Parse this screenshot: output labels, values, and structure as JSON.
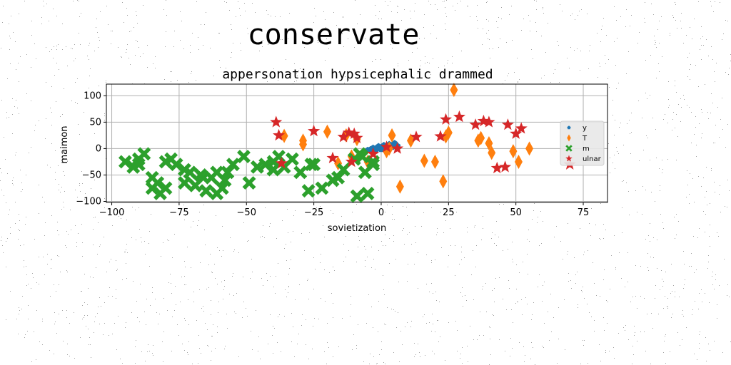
{
  "figure_title": "conservate",
  "chart_data": {
    "type": "scatter",
    "title": "appersonation hypsicephalic drammed",
    "xlabel": "sovietization",
    "ylabel": "maimon",
    "xlim": [
      -102,
      84
    ],
    "ylim": [
      -102,
      122
    ],
    "xticks": [
      -100,
      -75,
      -50,
      -25,
      0,
      25,
      50,
      75
    ],
    "yticks": [
      -100,
      -50,
      0,
      50,
      100
    ],
    "xtick_labels": [
      "−100",
      "−75",
      "−50",
      "−25",
      "0",
      "25",
      "50",
      "75"
    ],
    "ytick_labels": [
      "−100",
      "−50",
      "0",
      "50",
      "100"
    ],
    "grid": true,
    "legend_position": "right",
    "series": [
      {
        "name": "y",
        "marker": "pentagon",
        "color": "#1f77b4",
        "x": [
          -5,
          -4,
          -3,
          -2,
          -1,
          0,
          1,
          2,
          3,
          4,
          5,
          -3,
          -1,
          1,
          3,
          5,
          0,
          2,
          4,
          6,
          -2,
          1
        ],
        "y": [
          -3,
          -2,
          -1,
          0,
          1,
          2,
          3,
          4,
          5,
          6,
          7,
          1,
          4,
          6,
          8,
          10,
          -1,
          2,
          3,
          5,
          -4,
          0
        ]
      },
      {
        "name": "T",
        "marker": "diamond",
        "color": "#ff7f0e",
        "x": [
          -36,
          -29,
          -29,
          -20,
          -16,
          -13,
          -11,
          -9,
          -5,
          2,
          3,
          4,
          7,
          11,
          16,
          20,
          23,
          24,
          25,
          27,
          36,
          37,
          40,
          41,
          49,
          51,
          55
        ],
        "y": [
          24,
          8,
          15,
          32,
          -28,
          25,
          -15,
          18,
          -25,
          -5,
          0,
          25,
          -72,
          15,
          -23,
          -25,
          -62,
          23,
          30,
          111,
          15,
          20,
          10,
          -8,
          -5,
          -25,
          0
        ]
      },
      {
        "name": "m",
        "marker": "x",
        "color": "#2ca02c",
        "x": [
          -95,
          -92,
          -90,
          -88,
          -85,
          -83,
          -82,
          -80,
          -78,
          -76,
          -73,
          -71,
          -69,
          -67,
          -65,
          -63,
          -61,
          -59,
          -57,
          -55,
          -51,
          -49,
          -46,
          -43,
          -40,
          -38,
          -36,
          -33,
          -30,
          -27,
          -25,
          -22,
          -18,
          -16,
          -14,
          -9,
          -7,
          -5,
          -3,
          -90,
          -85,
          -80,
          -73,
          -66,
          -61,
          -58,
          -40,
          -26,
          -10,
          -8,
          -6,
          -3
        ],
        "y": [
          -25,
          -35,
          -20,
          -10,
          -55,
          -65,
          -85,
          -75,
          -20,
          -30,
          -40,
          -45,
          -70,
          -50,
          -80,
          -55,
          -85,
          -75,
          -45,
          -30,
          -15,
          -65,
          -35,
          -30,
          -25,
          -15,
          -35,
          -20,
          -45,
          -80,
          -30,
          -75,
          -60,
          -55,
          -40,
          -90,
          -15,
          -85,
          -30,
          -30,
          -75,
          -25,
          -65,
          -55,
          -45,
          -60,
          -40,
          -30,
          -20,
          -10,
          -45,
          -25
        ]
      },
      {
        "name": "ulnar",
        "marker": "star",
        "color": "#d62728",
        "x": [
          -39,
          -38,
          -37,
          -25,
          -14,
          -12,
          -11,
          -10,
          -9,
          -18,
          2,
          6,
          13,
          22,
          24,
          29,
          35,
          38,
          40,
          43,
          46,
          47,
          50,
          52,
          70,
          -3
        ],
        "y": [
          50,
          25,
          -28,
          33,
          22,
          30,
          -25,
          28,
          20,
          -18,
          3,
          0,
          22,
          23,
          55,
          60,
          45,
          52,
          50,
          -37,
          -35,
          45,
          28,
          38,
          -30,
          -10
        ]
      }
    ]
  }
}
